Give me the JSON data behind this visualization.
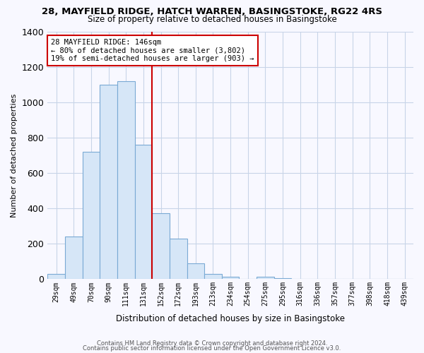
{
  "title_line1": "28, MAYFIELD RIDGE, HATCH WARREN, BASINGSTOKE, RG22 4RS",
  "title_line2": "Size of property relative to detached houses in Basingstoke",
  "xlabel": "Distribution of detached houses by size in Basingstoke",
  "ylabel": "Number of detached properties",
  "bar_labels": [
    "29sqm",
    "49sqm",
    "70sqm",
    "90sqm",
    "111sqm",
    "131sqm",
    "152sqm",
    "172sqm",
    "193sqm",
    "213sqm",
    "234sqm",
    "254sqm",
    "275sqm",
    "295sqm",
    "316sqm",
    "336sqm",
    "357sqm",
    "377sqm",
    "398sqm",
    "418sqm",
    "439sqm"
  ],
  "bar_values": [
    30,
    240,
    720,
    1100,
    1120,
    760,
    375,
    230,
    90,
    30,
    15,
    0,
    15,
    5,
    0,
    0,
    0,
    0,
    0,
    0,
    0
  ],
  "bar_color": "#d6e6f7",
  "bar_edge_color": "#7aaad4",
  "vline_x_index": 6,
  "vline_color": "#cc0000",
  "annotation_line1": "28 MAYFIELD RIDGE: 146sqm",
  "annotation_line2": "← 80% of detached houses are smaller (3,802)",
  "annotation_line3": "19% of semi-detached houses are larger (903) →",
  "annotation_box_color": "white",
  "annotation_box_edge": "#cc0000",
  "ylim": [
    0,
    1400
  ],
  "yticks": [
    0,
    200,
    400,
    600,
    800,
    1000,
    1200,
    1400
  ],
  "footer_line1": "Contains HM Land Registry data © Crown copyright and database right 2024.",
  "footer_line2": "Contains public sector information licensed under the Open Government Licence v3.0.",
  "bg_color": "#f8f8ff",
  "grid_color": "#c8d4e8"
}
